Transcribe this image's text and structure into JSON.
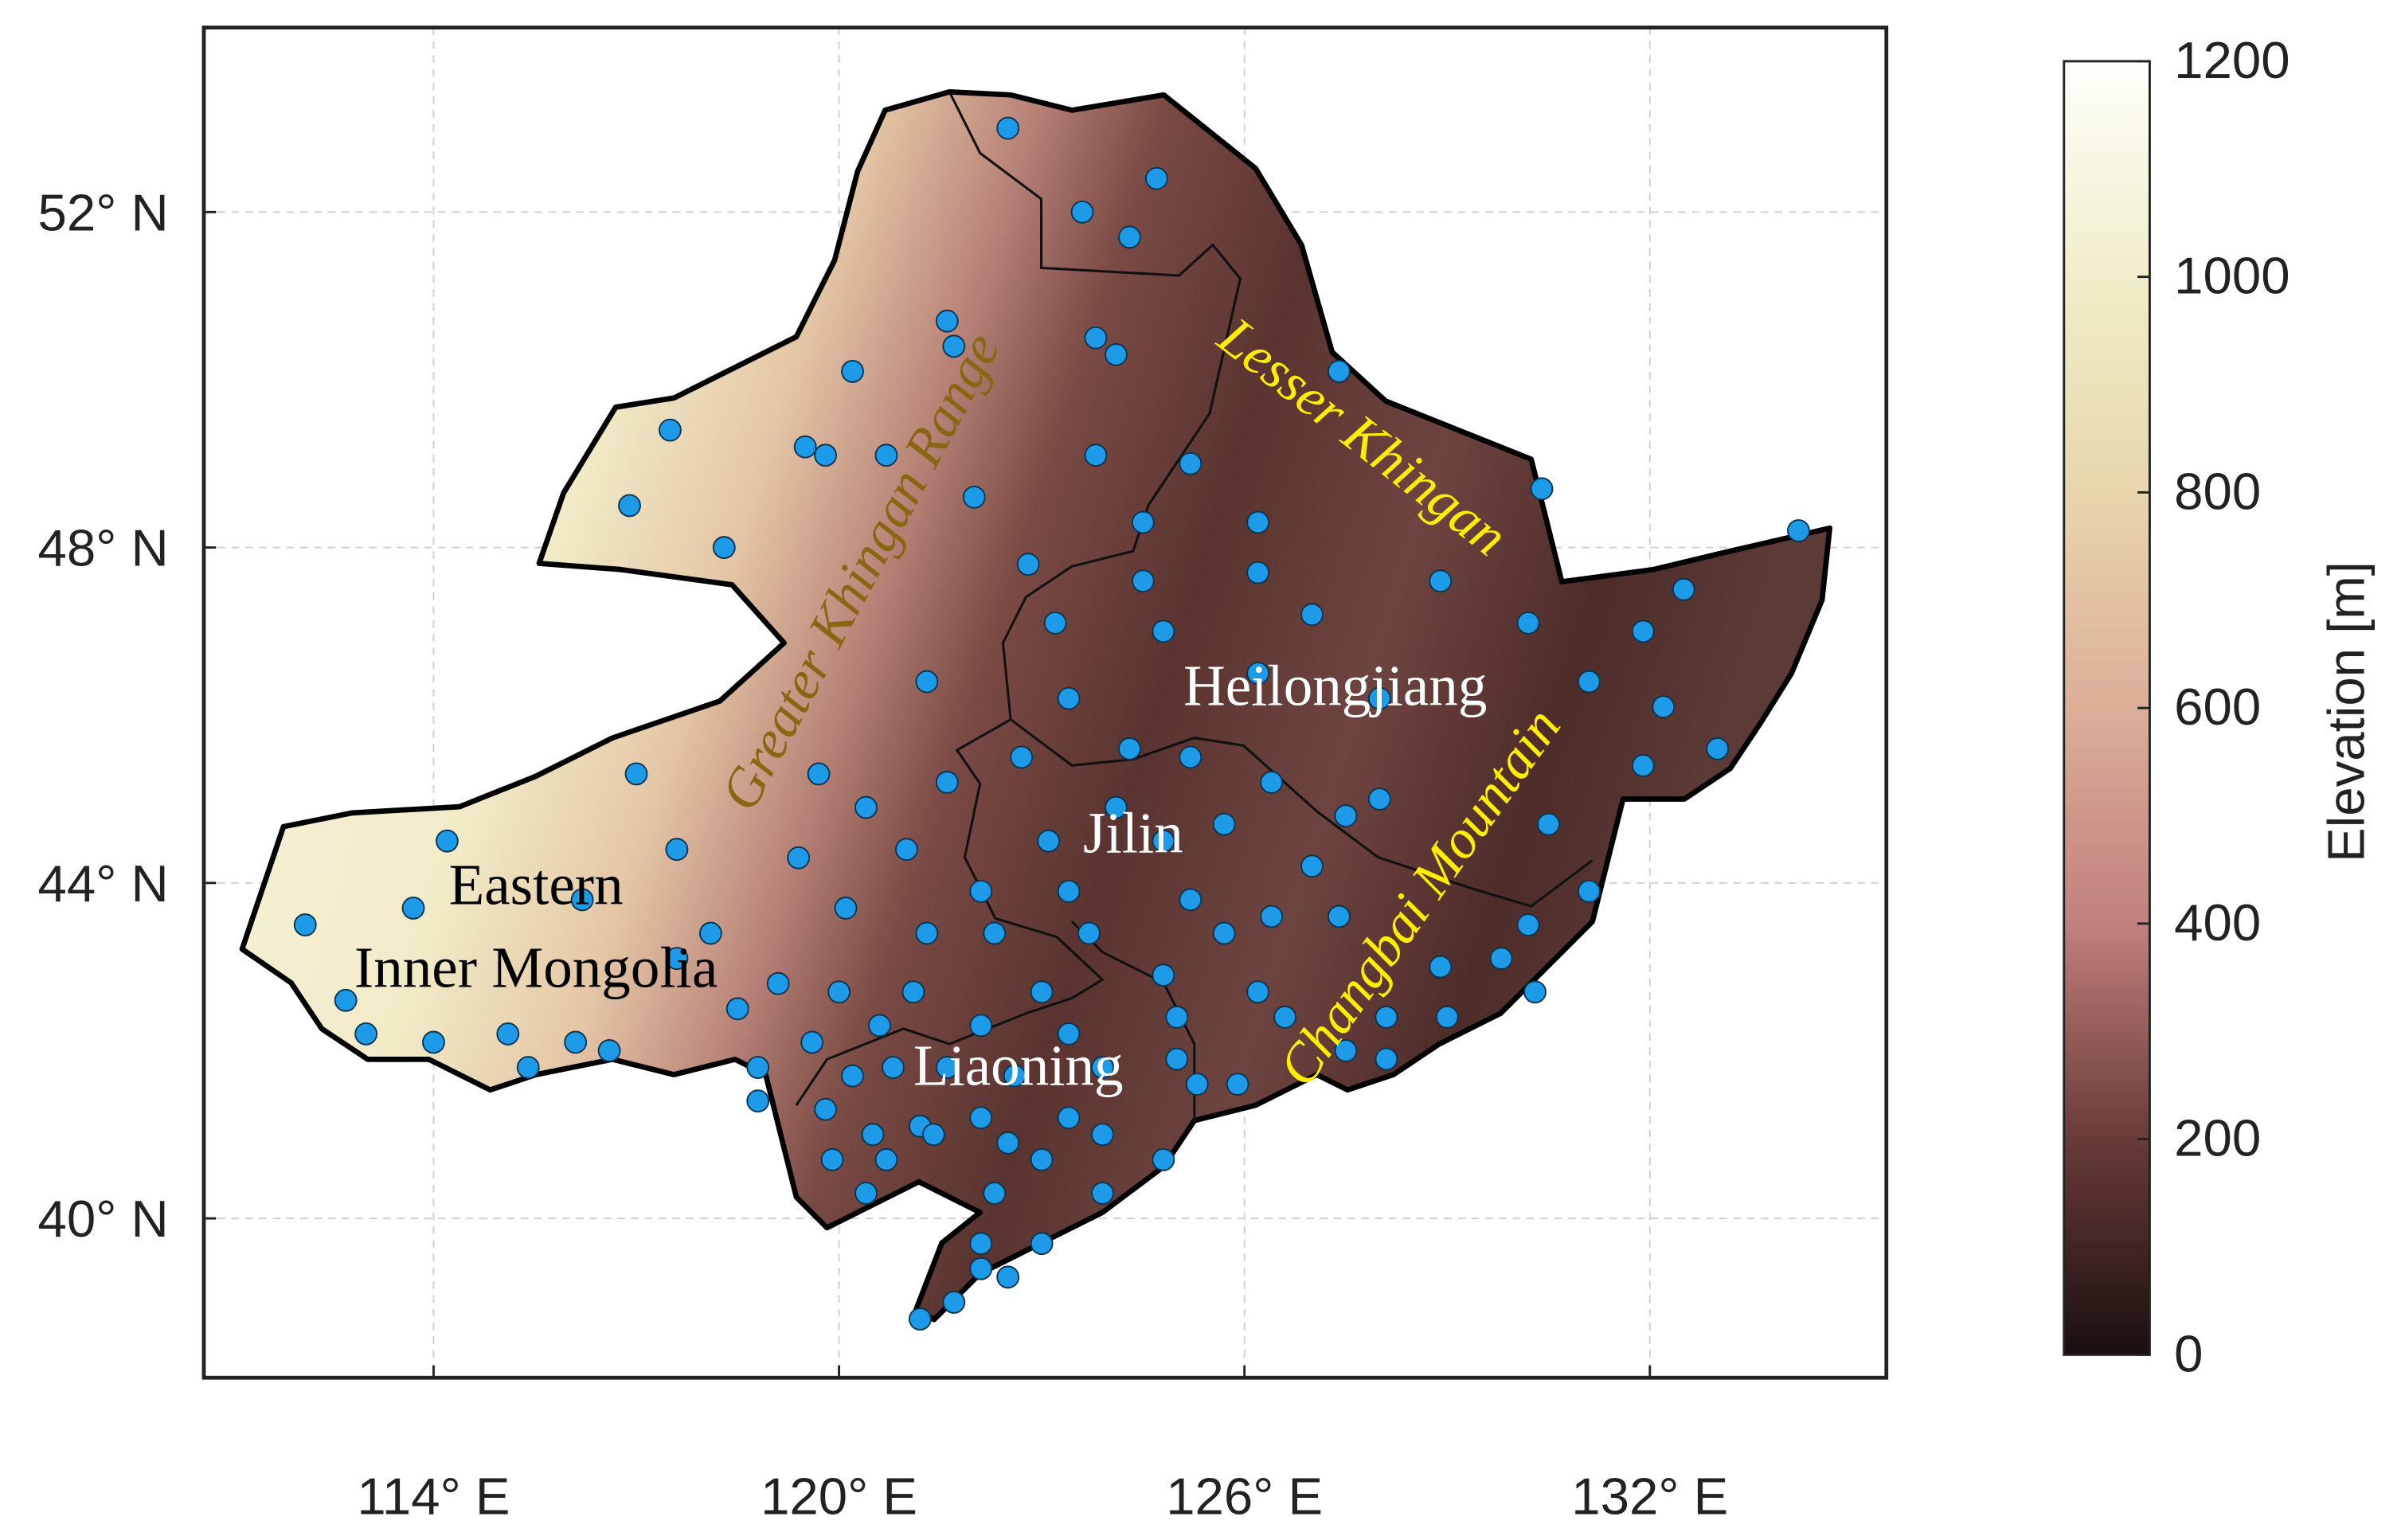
{
  "map": {
    "xlim": [
      110.6,
      135.5
    ],
    "ylim": [
      38.1,
      54.2
    ],
    "grid": true,
    "xticks": [
      {
        "value": 114,
        "label": "114° E"
      },
      {
        "value": 120,
        "label": "120° E"
      },
      {
        "value": 126,
        "label": "126° E"
      },
      {
        "value": 132,
        "label": "132° E"
      }
    ],
    "yticks": [
      {
        "value": 40,
        "label": "40° N"
      },
      {
        "value": 44,
        "label": "44° N"
      },
      {
        "value": 48,
        "label": "48° N"
      },
      {
        "value": 52,
        "label": "52° N"
      }
    ]
  },
  "colorbar": {
    "label": "Elevation [m]",
    "lim": [
      0,
      1200
    ],
    "ticks": [
      0,
      200,
      400,
      600,
      800,
      1000,
      1200
    ]
  },
  "labels": {
    "eastern": "Eastern",
    "inner_mongolia": "Inner Mongolia",
    "heilongjiang": "Heilongjiang",
    "jilin": "Jilin",
    "liaoning": "Liaoning",
    "greater_khingan": "Greater Khingan Range",
    "lesser_khingan": "Lesser Khingan",
    "changbai": "Changbai Mountain"
  },
  "station_color": "#1e9be8",
  "stations": [
    [
      122.5,
      53.0
    ],
    [
      124.7,
      52.4
    ],
    [
      123.6,
      52.0
    ],
    [
      124.3,
      51.7
    ],
    [
      121.6,
      50.7
    ],
    [
      121.7,
      50.4
    ],
    [
      123.8,
      50.5
    ],
    [
      124.1,
      50.3
    ],
    [
      120.2,
      50.1
    ],
    [
      127.4,
      50.1
    ],
    [
      117.5,
      49.4
    ],
    [
      119.5,
      49.2
    ],
    [
      119.8,
      49.1
    ],
    [
      120.7,
      49.1
    ],
    [
      123.8,
      49.1
    ],
    [
      125.2,
      49.0
    ],
    [
      116.9,
      48.5
    ],
    [
      122.0,
      48.6
    ],
    [
      130.4,
      48.7
    ],
    [
      118.3,
      48.0
    ],
    [
      124.5,
      48.3
    ],
    [
      126.2,
      48.3
    ],
    [
      122.8,
      47.8
    ],
    [
      124.5,
      47.6
    ],
    [
      126.2,
      47.7
    ],
    [
      128.9,
      47.6
    ],
    [
      132.5,
      47.5
    ],
    [
      134.2,
      48.2
    ],
    [
      123.2,
      47.1
    ],
    [
      124.8,
      47.0
    ],
    [
      127.0,
      47.2
    ],
    [
      130.2,
      47.1
    ],
    [
      131.9,
      47.0
    ],
    [
      121.3,
      46.4
    ],
    [
      123.4,
      46.2
    ],
    [
      126.2,
      46.5
    ],
    [
      128.0,
      46.2
    ],
    [
      131.1,
      46.4
    ],
    [
      132.2,
      46.1
    ],
    [
      117.0,
      45.3
    ],
    [
      119.7,
      45.3
    ],
    [
      122.7,
      45.5
    ],
    [
      124.3,
      45.6
    ],
    [
      125.2,
      45.5
    ],
    [
      126.4,
      45.2
    ],
    [
      128.0,
      45.0
    ],
    [
      131.9,
      45.4
    ],
    [
      133.0,
      45.6
    ],
    [
      120.4,
      44.9
    ],
    [
      121.6,
      45.2
    ],
    [
      124.1,
      44.9
    ],
    [
      125.7,
      44.7
    ],
    [
      127.5,
      44.8
    ],
    [
      130.5,
      44.7
    ],
    [
      114.2,
      44.5
    ],
    [
      117.6,
      44.4
    ],
    [
      119.4,
      44.3
    ],
    [
      121.0,
      44.4
    ],
    [
      123.1,
      44.5
    ],
    [
      124.8,
      44.5
    ],
    [
      127.0,
      44.2
    ],
    [
      116.2,
      43.8
    ],
    [
      113.7,
      43.7
    ],
    [
      120.1,
      43.7
    ],
    [
      122.1,
      43.9
    ],
    [
      123.4,
      43.9
    ],
    [
      125.2,
      43.8
    ],
    [
      126.4,
      43.6
    ],
    [
      131.1,
      43.9
    ],
    [
      112.1,
      43.5
    ],
    [
      118.1,
      43.4
    ],
    [
      121.3,
      43.4
    ],
    [
      122.3,
      43.4
    ],
    [
      123.7,
      43.4
    ],
    [
      125.7,
      43.4
    ],
    [
      127.4,
      43.6
    ],
    [
      130.2,
      43.5
    ],
    [
      117.6,
      43.1
    ],
    [
      112.7,
      42.6
    ],
    [
      119.1,
      42.8
    ],
    [
      120.0,
      42.7
    ],
    [
      121.1,
      42.7
    ],
    [
      123.0,
      42.7
    ],
    [
      124.8,
      42.9
    ],
    [
      126.2,
      42.7
    ],
    [
      128.9,
      43.0
    ],
    [
      129.8,
      43.1
    ],
    [
      113.0,
      42.2
    ],
    [
      114.0,
      42.1
    ],
    [
      115.1,
      42.2
    ],
    [
      116.1,
      42.1
    ],
    [
      116.6,
      42.0
    ],
    [
      115.4,
      41.8
    ],
    [
      118.5,
      42.5
    ],
    [
      119.6,
      42.1
    ],
    [
      120.6,
      42.3
    ],
    [
      122.1,
      42.3
    ],
    [
      123.4,
      42.2
    ],
    [
      125.0,
      42.4
    ],
    [
      126.6,
      42.4
    ],
    [
      128.1,
      42.4
    ],
    [
      129.0,
      42.4
    ],
    [
      130.3,
      42.7
    ],
    [
      118.8,
      41.8
    ],
    [
      120.2,
      41.7
    ],
    [
      120.8,
      41.8
    ],
    [
      121.6,
      41.8
    ],
    [
      122.6,
      41.7
    ],
    [
      123.9,
      41.8
    ],
    [
      125.0,
      41.9
    ],
    [
      127.5,
      42.0
    ],
    [
      128.1,
      41.9
    ],
    [
      118.8,
      41.4
    ],
    [
      119.8,
      41.3
    ],
    [
      121.2,
      41.1
    ],
    [
      122.1,
      41.2
    ],
    [
      123.4,
      41.2
    ],
    [
      125.3,
      41.6
    ],
    [
      125.9,
      41.6
    ],
    [
      120.5,
      41.0
    ],
    [
      121.4,
      41.0
    ],
    [
      122.5,
      40.9
    ],
    [
      123.9,
      41.0
    ],
    [
      119.9,
      40.7
    ],
    [
      120.7,
      40.7
    ],
    [
      123.0,
      40.7
    ],
    [
      124.8,
      40.7
    ],
    [
      120.4,
      40.3
    ],
    [
      122.3,
      40.3
    ],
    [
      123.9,
      40.3
    ],
    [
      122.1,
      39.7
    ],
    [
      123.0,
      39.7
    ],
    [
      122.1,
      39.4
    ],
    [
      122.5,
      39.3
    ],
    [
      121.2,
      38.8
    ],
    [
      121.7,
      39.0
    ]
  ]
}
